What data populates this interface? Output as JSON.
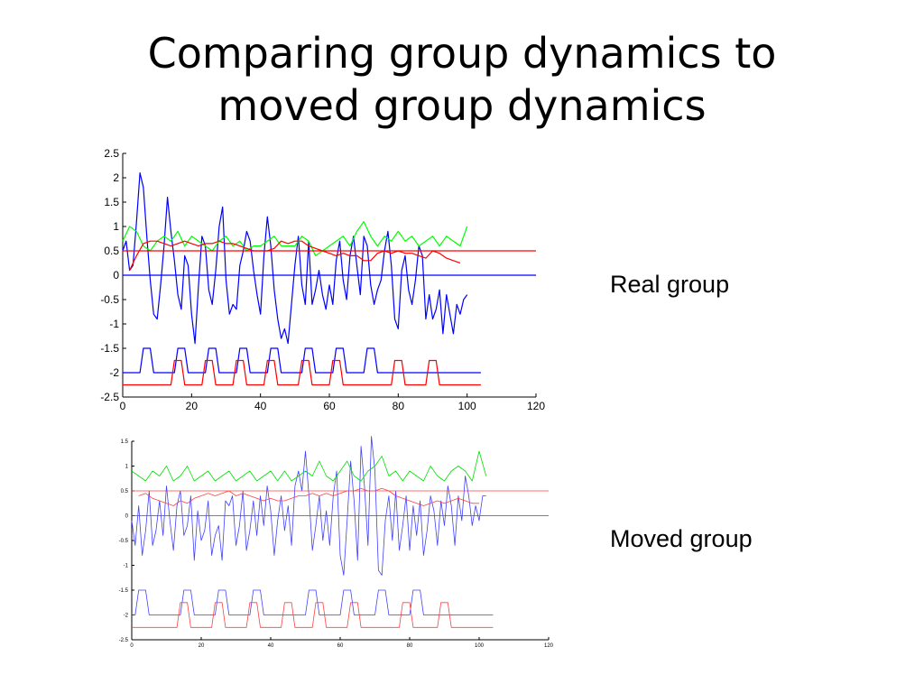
{
  "slide": {
    "title_line1": "Comparing group dynamics to",
    "title_line2": "moved group dynamics"
  },
  "chart_data": [
    {
      "type": "line",
      "label": "Real group",
      "xlim": [
        0,
        120
      ],
      "ylim": [
        -2.5,
        2.5
      ],
      "xticks": [
        0,
        20,
        40,
        60,
        80,
        100,
        120
      ],
      "yticks": [
        -2.5,
        -2,
        -1.5,
        -1,
        -0.5,
        0,
        0.5,
        1,
        1.5,
        2,
        2.5
      ],
      "xtick_labels": [
        "0",
        "20",
        "40",
        "60",
        "80",
        "100",
        "120"
      ],
      "ytick_labels": [
        "-2.5",
        "-2",
        "-1.5",
        "-1",
        "-0.5",
        "0",
        "0.5",
        "1",
        "1.5",
        "2",
        "2.5"
      ],
      "grid": false,
      "series": [
        {
          "color": "#0000ff",
          "kind": "signal",
          "x": [
            0,
            1,
            2,
            3,
            4,
            5,
            6,
            7,
            8,
            9,
            10,
            11,
            12,
            13,
            14,
            15,
            16,
            17,
            18,
            19,
            20,
            21,
            22,
            23,
            24,
            25,
            26,
            27,
            28,
            29,
            30,
            31,
            32,
            33,
            34,
            35,
            36,
            37,
            38,
            39,
            40,
            41,
            42,
            43,
            44,
            45,
            46,
            47,
            48,
            49,
            50,
            51,
            52,
            53,
            54,
            55,
            56,
            57,
            58,
            59,
            60,
            61,
            62,
            63,
            64,
            65,
            66,
            67,
            68,
            69,
            70,
            71,
            72,
            73,
            74,
            75,
            76,
            77,
            78,
            79,
            80,
            81,
            82,
            83,
            84,
            85,
            86,
            87,
            88,
            89,
            90,
            91,
            92,
            93,
            94,
            95,
            96,
            97,
            98,
            99,
            100
          ],
          "y": [
            0.5,
            0.7,
            0.1,
            0.2,
            1.1,
            2.1,
            1.8,
            0.8,
            -0.1,
            -0.8,
            -0.9,
            -0.2,
            0.6,
            1.6,
            0.9,
            0.3,
            -0.4,
            -0.7,
            0.4,
            0.2,
            -0.8,
            -1.4,
            -0.2,
            0.8,
            0.6,
            -0.3,
            -0.6,
            0.1,
            1.0,
            1.4,
            -0.1,
            -0.8,
            -0.6,
            -0.7,
            0.2,
            0.5,
            0.9,
            0.7,
            0.1,
            -0.4,
            -0.8,
            0.4,
            1.2,
            0.6,
            -0.3,
            -0.9,
            -1.3,
            -1.1,
            -1.4,
            -0.6,
            0.2,
            0.8,
            -0.2,
            -0.6,
            0.7,
            -0.6,
            -0.3,
            0.1,
            -0.4,
            -0.7,
            -0.2,
            -0.6,
            0.3,
            0.7,
            -0.1,
            -0.5,
            0.4,
            0.8,
            0.2,
            -0.4,
            0.8,
            0.6,
            -0.2,
            -0.6,
            -0.3,
            -0.1,
            0.5,
            0.9,
            0.2,
            -0.9,
            -1.1,
            0.1,
            0.4,
            -0.3,
            -0.6,
            -0.1,
            0.6,
            0.4,
            -0.9,
            -0.4,
            -0.9,
            -0.7,
            -0.3,
            -1.2,
            -0.4,
            -0.8,
            -1.2,
            -0.6,
            -0.8,
            -0.5,
            -0.4
          ]
        },
        {
          "color": "#00ff00",
          "kind": "signal",
          "x": [
            0,
            2,
            4,
            6,
            8,
            10,
            12,
            14,
            16,
            18,
            20,
            22,
            24,
            26,
            28,
            30,
            32,
            34,
            36,
            38,
            40,
            42,
            44,
            46,
            48,
            50,
            52,
            54,
            56,
            58,
            60,
            62,
            64,
            66,
            68,
            70,
            72,
            74,
            76,
            78,
            80,
            82,
            84,
            86,
            88,
            90,
            92,
            94,
            96,
            98,
            100
          ],
          "y": [
            0.7,
            1.0,
            0.9,
            0.6,
            0.5,
            0.7,
            0.8,
            0.7,
            0.9,
            0.6,
            0.8,
            0.7,
            0.6,
            0.5,
            0.7,
            0.8,
            0.6,
            0.7,
            0.5,
            0.6,
            0.6,
            0.7,
            0.8,
            0.6,
            0.6,
            0.6,
            0.8,
            0.7,
            0.4,
            0.5,
            0.6,
            0.7,
            0.8,
            0.6,
            0.9,
            1.1,
            0.8,
            0.6,
            0.8,
            0.7,
            0.9,
            0.7,
            0.8,
            0.6,
            0.7,
            0.8,
            0.6,
            0.8,
            0.7,
            0.6,
            1.0
          ]
        },
        {
          "color": "#ff0000",
          "kind": "signal",
          "x": [
            2,
            4,
            6,
            8,
            10,
            12,
            14,
            16,
            18,
            20,
            22,
            24,
            26,
            28,
            30,
            32,
            34,
            36,
            38,
            40,
            42,
            44,
            46,
            48,
            50,
            52,
            54,
            56,
            58,
            60,
            62,
            64,
            66,
            68,
            70,
            72,
            74,
            76,
            78,
            80,
            82,
            84,
            86,
            88,
            90,
            92,
            94,
            96,
            98
          ],
          "y": [
            0.1,
            0.4,
            0.65,
            0.7,
            0.7,
            0.65,
            0.6,
            0.65,
            0.7,
            0.65,
            0.6,
            0.65,
            0.65,
            0.7,
            0.65,
            0.65,
            0.6,
            0.55,
            0.5,
            0.5,
            0.5,
            0.55,
            0.7,
            0.65,
            0.7,
            0.7,
            0.6,
            0.55,
            0.5,
            0.45,
            0.4,
            0.45,
            0.4,
            0.4,
            0.3,
            0.3,
            0.45,
            0.5,
            0.45,
            0.5,
            0.45,
            0.45,
            0.4,
            0.35,
            0.5,
            0.45,
            0.35,
            0.3,
            0.25
          ]
        },
        {
          "color": "#ff0000",
          "kind": "hline",
          "y": 0.5,
          "x": [
            0,
            120
          ]
        },
        {
          "color": "#0000ff",
          "kind": "hline",
          "y": 0,
          "x": [
            0,
            120
          ]
        },
        {
          "color": "#0000ff",
          "kind": "pulse",
          "base": -2.0,
          "high": -1.5,
          "pulses": [
            [
              5,
              9
            ],
            [
              15,
              19
            ],
            [
              24,
              28
            ],
            [
              33,
              37
            ],
            [
              42,
              46
            ],
            [
              52,
              56
            ],
            [
              61,
              65
            ],
            [
              70,
              74
            ]
          ],
          "x": [
            0,
            104
          ]
        },
        {
          "color": "#ff0000",
          "kind": "pulse",
          "base": -2.25,
          "high": -1.75,
          "pulses": [
            [
              14,
              18
            ],
            [
              23,
              27
            ],
            [
              32,
              36
            ],
            [
              41,
              45
            ],
            [
              51,
              55
            ],
            [
              60,
              64
            ],
            [
              78,
              82
            ],
            [
              88,
              92
            ]
          ],
          "x": [
            0,
            104
          ]
        }
      ]
    },
    {
      "type": "line",
      "label": "Moved group",
      "xlim": [
        0,
        120
      ],
      "ylim": [
        -2.5,
        1.5
      ],
      "xticks": [
        0,
        20,
        40,
        60,
        80,
        100,
        120
      ],
      "yticks": [
        -2.5,
        -2,
        -1.5,
        -1,
        -0.5,
        0,
        0.5,
        1,
        1.5
      ],
      "xtick_labels": [
        "0",
        "20",
        "40",
        "60",
        "80",
        "100",
        "120"
      ],
      "ytick_labels": [
        "-2.5",
        "-2",
        "-1.5",
        "-1",
        "-0.5",
        "0",
        "0.5",
        "1",
        "1.5"
      ],
      "grid": false,
      "series": [
        {
          "color": "#4040ff",
          "kind": "signal",
          "x": [
            0,
            1,
            2,
            3,
            4,
            5,
            6,
            7,
            8,
            9,
            10,
            11,
            12,
            13,
            14,
            15,
            16,
            17,
            18,
            19,
            20,
            21,
            22,
            23,
            24,
            25,
            26,
            27,
            28,
            29,
            30,
            31,
            32,
            33,
            34,
            35,
            36,
            37,
            38,
            39,
            40,
            41,
            42,
            43,
            44,
            45,
            46,
            47,
            48,
            49,
            50,
            51,
            52,
            53,
            54,
            55,
            56,
            57,
            58,
            59,
            60,
            61,
            62,
            63,
            64,
            65,
            66,
            67,
            68,
            69,
            70,
            71,
            72,
            73,
            74,
            75,
            76,
            77,
            78,
            79,
            80,
            81,
            82,
            83,
            84,
            85,
            86,
            87,
            88,
            89,
            90,
            91,
            92,
            93,
            94,
            95,
            96,
            97,
            98,
            99,
            100,
            101,
            102
          ],
          "y": [
            -0.1,
            -0.6,
            0.2,
            -0.8,
            -0.3,
            0.5,
            -0.6,
            -0.3,
            0.3,
            -0.4,
            0.6,
            -0.1,
            -0.7,
            0.2,
            0.5,
            -0.4,
            -0.2,
            0.4,
            -0.9,
            0.1,
            -0.5,
            -0.3,
            0.3,
            -0.8,
            -0.4,
            -0.2,
            -0.9,
            0.3,
            0.2,
            0.4,
            -0.6,
            -0.2,
            0.5,
            -0.7,
            -0.3,
            0.3,
            -0.4,
            0.4,
            -0.2,
            0.6,
            0.1,
            -0.8,
            -0.1,
            0.4,
            -0.3,
            0.2,
            -0.6,
            0.6,
            0.9,
            0.5,
            1.3,
            0.4,
            -0.7,
            -0.2,
            0.4,
            -0.5,
            0.1,
            -0.6,
            0.4,
            0.9,
            -0.8,
            -1.2,
            -0.1,
            1.1,
            0.3,
            -0.9,
            1.4,
            0.6,
            -0.6,
            1.6,
            0.9,
            -1.1,
            -1.2,
            -0.1,
            0.4,
            -0.5,
            0.5,
            -0.7,
            -0.2,
            0.4,
            -0.7,
            0.2,
            -0.4,
            0.3,
            -0.8,
            -0.3,
            0.4,
            0.1,
            -0.6,
            0.3,
            -0.2,
            0.6,
            0.2,
            -0.6,
            0.4,
            -0.1,
            0.8,
            0.4,
            -0.2,
            0.2,
            -0.1,
            0.4,
            0.4
          ]
        },
        {
          "color": "#00e000",
          "kind": "signal",
          "x": [
            0,
            2,
            4,
            6,
            8,
            10,
            12,
            14,
            16,
            18,
            20,
            22,
            24,
            26,
            28,
            30,
            32,
            34,
            36,
            38,
            40,
            42,
            44,
            46,
            48,
            50,
            52,
            54,
            56,
            58,
            60,
            62,
            64,
            66,
            68,
            70,
            72,
            74,
            76,
            78,
            80,
            82,
            84,
            86,
            88,
            90,
            92,
            94,
            96,
            98,
            100,
            102
          ],
          "y": [
            0.9,
            0.8,
            0.7,
            0.9,
            0.8,
            1.0,
            0.7,
            0.8,
            1.0,
            0.7,
            0.8,
            0.9,
            0.7,
            0.8,
            0.9,
            0.7,
            0.8,
            0.9,
            0.7,
            0.8,
            0.9,
            0.7,
            0.9,
            0.7,
            0.8,
            0.9,
            0.8,
            1.1,
            0.8,
            0.7,
            0.9,
            1.1,
            0.8,
            0.7,
            0.9,
            1.0,
            1.2,
            0.8,
            0.9,
            0.7,
            0.9,
            0.8,
            0.7,
            1.0,
            0.8,
            0.7,
            0.9,
            1.0,
            0.9,
            0.7,
            1.3,
            0.8
          ]
        },
        {
          "color": "#ff4040",
          "kind": "signal",
          "x": [
            2,
            4,
            6,
            8,
            10,
            12,
            14,
            16,
            18,
            20,
            22,
            24,
            26,
            28,
            30,
            32,
            34,
            36,
            38,
            40,
            42,
            44,
            46,
            48,
            50,
            52,
            54,
            56,
            58,
            60,
            62,
            64,
            66,
            68,
            70,
            72,
            74,
            76,
            78,
            80,
            82,
            84,
            86,
            88,
            90,
            92,
            94,
            96,
            98,
            100
          ],
          "y": [
            0.4,
            0.45,
            0.35,
            0.3,
            0.25,
            0.2,
            0.3,
            0.25,
            0.35,
            0.4,
            0.45,
            0.4,
            0.45,
            0.5,
            0.4,
            0.45,
            0.4,
            0.35,
            0.3,
            0.35,
            0.3,
            0.3,
            0.35,
            0.4,
            0.4,
            0.45,
            0.4,
            0.45,
            0.4,
            0.45,
            0.5,
            0.5,
            0.55,
            0.5,
            0.5,
            0.55,
            0.5,
            0.4,
            0.35,
            0.3,
            0.25,
            0.2,
            0.25,
            0.3,
            0.25,
            0.3,
            0.35,
            0.3,
            0.25,
            0.25
          ]
        },
        {
          "color": "#ff4040",
          "kind": "hline",
          "y": 0.5,
          "x": [
            0,
            120
          ]
        },
        {
          "color": "#4040ff",
          "kind": "hline",
          "y": 0,
          "x": [
            0,
            120
          ]
        },
        {
          "color": "#4040ff",
          "kind": "pulse",
          "base": -2.0,
          "high": -1.5,
          "pulses": [
            [
              1,
              5
            ],
            [
              14,
              18
            ],
            [
              24,
              28
            ],
            [
              34,
              38
            ],
            [
              50,
              54
            ],
            [
              60,
              64
            ],
            [
              70,
              74
            ],
            [
              80,
              84
            ]
          ],
          "x": [
            0,
            104
          ]
        },
        {
          "color": "#ff4040",
          "kind": "pulse",
          "base": -2.25,
          "high": -1.75,
          "pulses": [
            [
              13,
              17
            ],
            [
              23,
              27
            ],
            [
              33,
              37
            ],
            [
              43,
              47
            ],
            [
              52,
              56
            ],
            [
              62,
              66
            ],
            [
              77,
              81
            ],
            [
              88,
              92
            ]
          ],
          "x": [
            0,
            104
          ]
        }
      ]
    }
  ]
}
